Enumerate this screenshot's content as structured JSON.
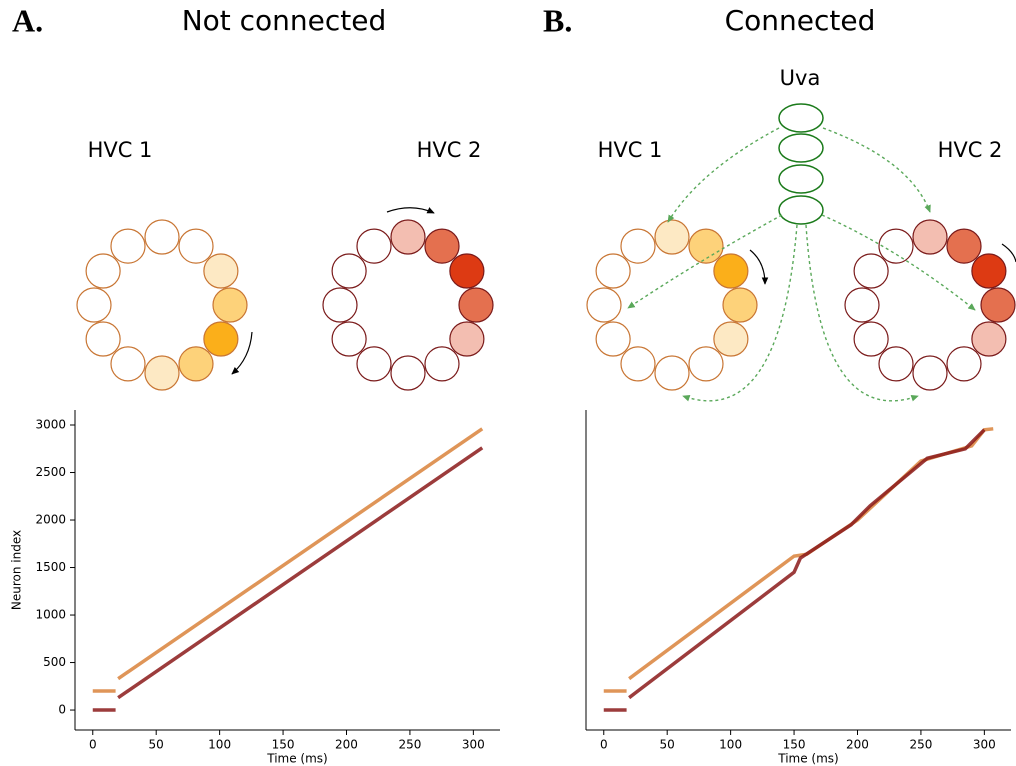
{
  "panels": [
    {
      "label": "A.",
      "title": "Not connected",
      "ring_labels": [
        "HVC 1",
        "HVC 2"
      ]
    },
    {
      "label": "B.",
      "title": "Connected",
      "input_label": "Uva",
      "ring_labels": [
        "HVC 1",
        "HVC 2"
      ]
    }
  ],
  "chart_data": [
    {
      "type": "line",
      "xlabel": "Time (ms)",
      "ylabel": "Neuron index",
      "xlim": [
        -14,
        321
      ],
      "ylim": [
        -210,
        3158
      ],
      "xticks": [
        0,
        50,
        100,
        150,
        200,
        250,
        300
      ],
      "yticks": [
        0,
        500,
        1000,
        1500,
        2000,
        2500,
        3000
      ],
      "series": [
        {
          "color": "#d9823b",
          "x": [
            0,
            18,
            19,
            20,
            307
          ],
          "values": [
            200,
            200,
            null,
            330,
            2960
          ]
        },
        {
          "color": "#8b1a1a",
          "x": [
            0,
            18,
            19,
            20,
            307
          ],
          "values": [
            0,
            0,
            null,
            130,
            2760
          ]
        }
      ]
    },
    {
      "type": "line",
      "xlabel": "Time (ms)",
      "xlim": [
        -14,
        321
      ],
      "ylim": [
        -210,
        3158
      ],
      "xticks": [
        0,
        50,
        100,
        150,
        200,
        250,
        300
      ],
      "series": [
        {
          "color": "#d9823b",
          "x": [
            0,
            18,
            19,
            20,
            150,
            160,
            200,
            250,
            290,
            300,
            307
          ],
          "values": [
            200,
            200,
            null,
            330,
            1620,
            1640,
            2000,
            2620,
            2780,
            2950,
            2960
          ]
        },
        {
          "color": "#8b1a1a",
          "x": [
            0,
            18,
            19,
            20,
            150,
            155,
            195,
            210,
            255,
            285,
            300
          ],
          "values": [
            0,
            0,
            null,
            130,
            1450,
            1600,
            1950,
            2150,
            2650,
            2750,
            2950
          ]
        }
      ]
    }
  ]
}
